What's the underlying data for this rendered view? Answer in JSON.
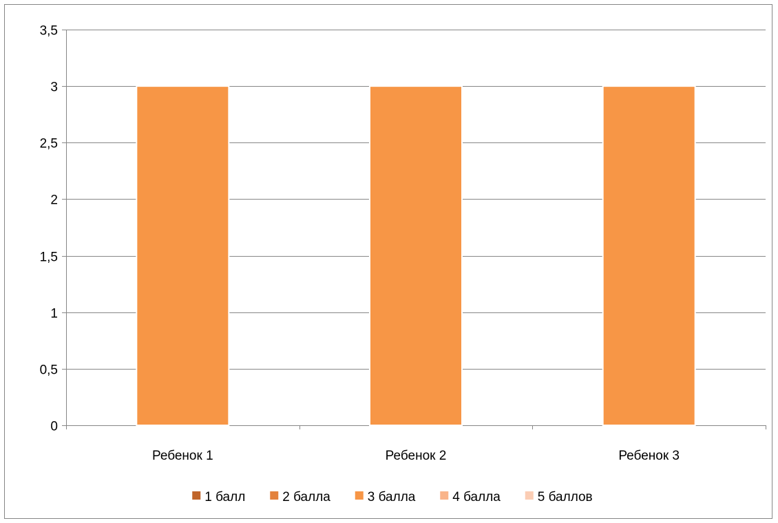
{
  "chart_data": {
    "type": "bar",
    "title": "",
    "xlabel": "",
    "ylabel": "",
    "categories": [
      "Ребенок 1",
      "Ребенок 2",
      "Ребенок 3"
    ],
    "ylim": [
      0,
      3.5
    ],
    "y_ticks": [
      "0",
      "0,5",
      "1",
      "1,5",
      "2",
      "2,5",
      "3",
      "3,5"
    ],
    "grid": true,
    "legend_position": "bottom",
    "series": [
      {
        "name": "1 балл",
        "color": "#c0652a",
        "values": [
          0,
          0,
          0
        ]
      },
      {
        "name": "2 балла",
        "color": "#e3823d",
        "values": [
          0,
          0,
          0
        ]
      },
      {
        "name": "3 балла",
        "color": "#f79646",
        "values": [
          3,
          3,
          3
        ]
      },
      {
        "name": "4 балла",
        "color": "#f9b48a",
        "values": [
          0,
          0,
          0
        ]
      },
      {
        "name": "5 баллов",
        "color": "#fbcdb4",
        "values": [
          0,
          0,
          0
        ]
      }
    ]
  }
}
